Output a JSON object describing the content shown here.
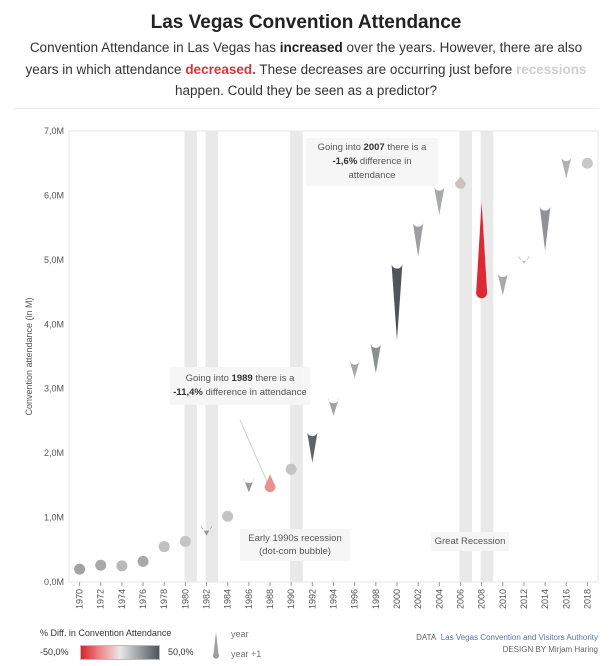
{
  "header": {
    "title": "Las Vegas Convention Attendance",
    "sub_1": "Convention Attendance in Las Vegas has ",
    "sub_increased": "increased",
    "sub_2": " over the years. However, there are also years in which attendance ",
    "sub_decreased": "decreased.",
    "sub_3": " These decreases are occurring just before ",
    "sub_recessions": "recessions",
    "sub_4": " happen. Could they be seen as a predictor?"
  },
  "colors": {
    "decrease": "#d9343a",
    "recession_band": "#e9e9e9",
    "neutral": "#c8c8c8",
    "increase": "#4f555a"
  },
  "annotations": {
    "a1989_pre": "Going into ",
    "a1989_year": "1989",
    "a1989_mid": " there is a ",
    "a1989_val": "-11,4%",
    "a1989_post": " difference in attendance",
    "a2007_pre": "Going into ",
    "a2007_year": "2007",
    "a2007_mid": " there is a ",
    "a2007_val": "-1,6%",
    "a2007_post": " difference in attendance",
    "rec_early90s": "Early 1990s recession (dot-com bubble)",
    "rec_great": "Great Recession"
  },
  "legend": {
    "title": "% Diff. in Convention Attendance",
    "min": "-50,0%",
    "max": "50,0%",
    "year": "year",
    "year_plus": "year +1"
  },
  "credits": {
    "data_label": "DATA",
    "data_source": "Las Vegas Convention and Visitors Authority",
    "design": "DESIGN BY Mirjam Haring"
  },
  "chart_data": {
    "type": "scatter",
    "title": "Las Vegas Convention Attendance",
    "ylabel": "Convention attendance (in M)",
    "xlabel": "",
    "ylim": [
      0,
      7.0
    ],
    "y_ticks": [
      "0,0M",
      "1,0M",
      "2,0M",
      "3,0M",
      "4,0M",
      "5,0M",
      "6,0M",
      "7,0M"
    ],
    "x_ticks": [
      "1970",
      "1972",
      "1974",
      "1976",
      "1978",
      "1980",
      "1982",
      "1984",
      "1986",
      "1988",
      "1990",
      "1992",
      "1994",
      "1996",
      "1998",
      "2000",
      "2002",
      "2004",
      "2006",
      "2008",
      "2010",
      "2012",
      "2014",
      "2016",
      "2018"
    ],
    "recession_bands": [
      [
        1980,
        1981
      ],
      [
        1982,
        1983
      ],
      [
        1990,
        1991
      ],
      [
        2006,
        2007
      ],
      [
        2008,
        2009
      ]
    ],
    "points": [
      {
        "year": 1970,
        "y0": 0.2,
        "y1": 0.24,
        "pct": 10
      },
      {
        "year": 1972,
        "y0": 0.26,
        "y1": 0.29,
        "pct": 8
      },
      {
        "year": 1974,
        "y0": 0.25,
        "y1": 0.27,
        "pct": 4
      },
      {
        "year": 1976,
        "y0": 0.32,
        "y1": 0.36,
        "pct": 8
      },
      {
        "year": 1978,
        "y0": 0.55,
        "y1": 0.56,
        "pct": 2
      },
      {
        "year": 1980,
        "y0": 0.63,
        "y1": 0.64,
        "pct": 1
      },
      {
        "year": 1982,
        "y0": 0.88,
        "y1": 0.72,
        "pct": 14
      },
      {
        "year": 1984,
        "y0": 1.02,
        "y1": 1.03,
        "pct": 1
      },
      {
        "year": 1986,
        "y0": 1.62,
        "y1": 1.39,
        "pct": 12
      },
      {
        "year": 1988,
        "y0": 1.48,
        "y1": 1.67,
        "pct": -11.4
      },
      {
        "year": 1990,
        "y0": 1.75,
        "y1": 1.76,
        "pct": 1
      },
      {
        "year": 1992,
        "y0": 2.35,
        "y1": 1.85,
        "pct": 26
      },
      {
        "year": 1994,
        "y0": 2.86,
        "y1": 2.58,
        "pct": 10
      },
      {
        "year": 1996,
        "y0": 3.46,
        "y1": 3.17,
        "pct": 9
      },
      {
        "year": 1998,
        "y0": 3.72,
        "y1": 3.24,
        "pct": 15
      },
      {
        "year": 2000,
        "y0": 4.95,
        "y1": 3.75,
        "pct": 32
      },
      {
        "year": 2002,
        "y0": 5.6,
        "y1": 5.05,
        "pct": 11
      },
      {
        "year": 2004,
        "y0": 6.16,
        "y1": 5.7,
        "pct": 8
      },
      {
        "year": 2006,
        "y0": 6.19,
        "y1": 6.29,
        "pct": -1.6
      },
      {
        "year": 2008,
        "y0": 4.49,
        "y1": 5.9,
        "pct": -24
      },
      {
        "year": 2010,
        "y0": 4.82,
        "y1": 4.45,
        "pct": 8
      },
      {
        "year": 2012,
        "y0": 5.07,
        "y1": 4.94,
        "pct": 3
      },
      {
        "year": 2014,
        "y0": 5.85,
        "y1": 5.14,
        "pct": 14
      },
      {
        "year": 2016,
        "y0": 6.62,
        "y1": 6.26,
        "pct": 6
      },
      {
        "year": 2018,
        "y0": 6.5,
        "y1": 6.48,
        "pct": 0
      }
    ]
  }
}
